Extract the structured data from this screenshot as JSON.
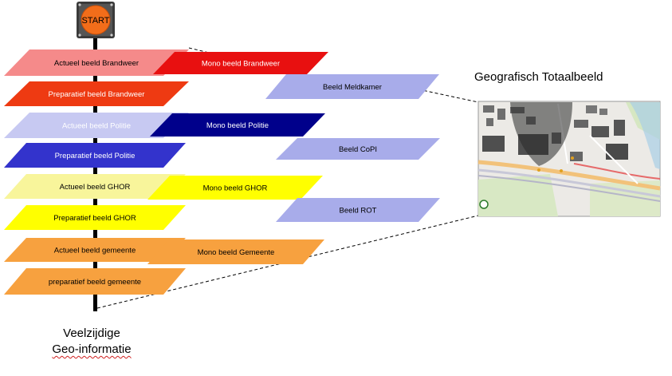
{
  "start": {
    "label": "START",
    "color": "#f26d1a"
  },
  "center_layers": [
    {
      "label": "Actueel  beeld Brandweer",
      "fill": "#f58a8a",
      "text": "#000000"
    },
    {
      "label": "Preparatief  beeld Brandweer",
      "fill": "#ee3a12",
      "text": "#ffffff"
    },
    {
      "label": "Actueel  beeld Politie",
      "fill": "#c7c9f2",
      "text": "#ffffff"
    },
    {
      "label": "Preparatief  beeld Politie",
      "fill": "#3333cc",
      "text": "#ffffff"
    },
    {
      "label": "Actueel beeld GHOR",
      "fill": "#f8f59b",
      "text": "#000000"
    },
    {
      "label": "Preparatief  beeld GHOR",
      "fill": "#ffff00",
      "text": "#000000"
    },
    {
      "label": "Actueel beeld gemeente",
      "fill": "#f7a13f",
      "text": "#000000"
    },
    {
      "label": "preparatief beeld gemeente",
      "fill": "#f7a13f",
      "text": "#000000"
    }
  ],
  "mono_layers": [
    {
      "label": "Mono beeld Brandweer",
      "fill": "#e81010",
      "text": "#ffffff"
    },
    {
      "label": "Mono beeld Politie",
      "fill": "#00008b",
      "text": "#ffffff"
    },
    {
      "label": "Mono beeld GHOR",
      "fill": "#ffff00",
      "text": "#000000"
    },
    {
      "label": "Mono beeld Gemeente",
      "fill": "#f7a13f",
      "text": "#000000"
    }
  ],
  "shared_layers": [
    {
      "label": "Beeld Meldkamer",
      "fill": "#a8acea",
      "text": "#000000"
    },
    {
      "label": "Beeld CoPI",
      "fill": "#a8acea",
      "text": "#000000"
    },
    {
      "label": "Beeld ROT",
      "fill": "#a8acea",
      "text": "#000000"
    }
  ],
  "geo_title": "Geografisch Totaalbeeld",
  "bottom_label": {
    "line1": "Veelzijdige",
    "line2": "Geo-informatie"
  }
}
